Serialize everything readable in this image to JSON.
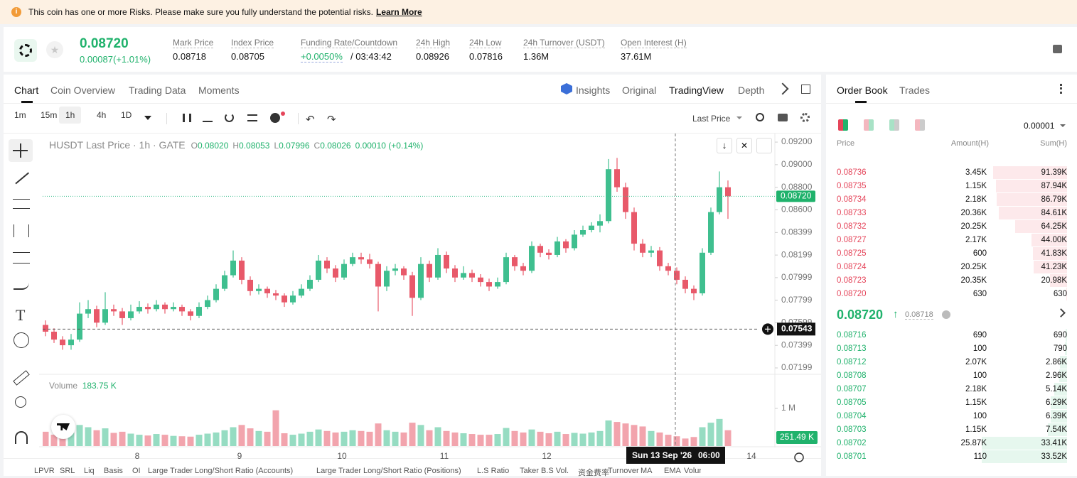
{
  "banner": {
    "text": "This coin has one or more Risks. Please make sure you fully understand the potential risks.",
    "link": "Learn More"
  },
  "ticker": {
    "price": "0.08720",
    "change": "0.00087(+1.01%)",
    "stats": [
      {
        "label": "Mark Price",
        "value": "0.08718"
      },
      {
        "label": "Index Price",
        "value": "0.08705"
      },
      {
        "label": "Funding Rate/Countdown",
        "value": "+0.0050%",
        "extra": "/ 03:43:42"
      },
      {
        "label": "24h High",
        "value": "0.08926"
      },
      {
        "label": "24h Low",
        "value": "0.07816"
      },
      {
        "label": "24h Turnover (USDT)",
        "value": "1.36M"
      },
      {
        "label": "Open Interest (H)",
        "value": "37.61M"
      }
    ]
  },
  "tabs": [
    "Chart",
    "Coin Overview",
    "Trading Data",
    "Moments"
  ],
  "views": [
    "Insights",
    "Original",
    "TradingView",
    "Depth"
  ],
  "intervals": [
    "1m",
    "15m",
    "1h",
    "4h",
    "1D"
  ],
  "price_type": "Last Price",
  "legend": {
    "title": "HUSDT Last Price · 1h · GATE",
    "items": [
      {
        "k": "O",
        "v": "0.08020"
      },
      {
        "k": "H",
        "v": "0.08053"
      },
      {
        "k": "L",
        "v": "0.07996"
      },
      {
        "k": "C",
        "v": "0.08026"
      }
    ],
    "change": "0.00010 (+0.14%)"
  },
  "chart": {
    "type": "candlestick",
    "up_color": "#3fbf8f",
    "down_color": "#e8596a",
    "ylim": [
      0.07155,
      0.09276
    ],
    "yticks": [
      {
        "value": 0.092,
        "label": "0.09200"
      },
      {
        "value": 0.09,
        "label": "0.09000"
      },
      {
        "value": 0.088,
        "label": "0.08800"
      },
      {
        "value": 0.086,
        "label": "0.08600"
      },
      {
        "value": 0.08399,
        "label": "0.08399"
      },
      {
        "value": 0.08199,
        "label": "0.08199"
      },
      {
        "value": 0.07999,
        "label": "0.07999"
      },
      {
        "value": 0.07799,
        "label": "0.07799"
      },
      {
        "value": 0.07599,
        "label": "0.07599"
      },
      {
        "value": 0.07399,
        "label": "0.07399"
      },
      {
        "value": 0.07199,
        "label": "0.07199"
      }
    ],
    "last_price": {
      "value": 0.0872,
      "label": "0.08720"
    },
    "crosshair_price": {
      "value": 0.07543,
      "label": "0.07543"
    },
    "crosshair_date": "Sun 13 Sep '26",
    "crosshair_time": "06:00",
    "x_labels": [
      "8",
      "9",
      "10",
      "11",
      "12",
      "14"
    ],
    "volume_label": "Volume",
    "volume_value": "183.75 K",
    "last_volume_label": "251.49 K",
    "vol_ylim": [
      0,
      1849000
    ],
    "vol_yticks": [
      {
        "value": 1000000,
        "label": "1 M"
      }
    ],
    "ohlc": [
      [
        0.0758,
        0.0762,
        0.0748,
        0.0752
      ],
      [
        0.0752,
        0.0755,
        0.0742,
        0.0745
      ],
      [
        0.0745,
        0.0748,
        0.0736,
        0.074
      ],
      [
        0.074,
        0.075,
        0.0736,
        0.0745
      ],
      [
        0.0745,
        0.0778,
        0.0743,
        0.0768
      ],
      [
        0.0768,
        0.078,
        0.0764,
        0.0772
      ],
      [
        0.0772,
        0.0775,
        0.0756,
        0.076
      ],
      [
        0.076,
        0.0787,
        0.0758,
        0.0772
      ],
      [
        0.0772,
        0.0776,
        0.0766,
        0.077
      ],
      [
        0.077,
        0.0773,
        0.0758,
        0.0764
      ],
      [
        0.0764,
        0.0776,
        0.0762,
        0.077
      ],
      [
        0.077,
        0.0779,
        0.0768,
        0.0774
      ],
      [
        0.0774,
        0.0777,
        0.0768,
        0.0772
      ],
      [
        0.0772,
        0.078,
        0.077,
        0.0776
      ],
      [
        0.0776,
        0.0778,
        0.0768,
        0.0772
      ],
      [
        0.0772,
        0.0778,
        0.077,
        0.0774
      ],
      [
        0.0774,
        0.0776,
        0.0766,
        0.077
      ],
      [
        0.077,
        0.0772,
        0.0762,
        0.0766
      ],
      [
        0.0766,
        0.0778,
        0.0764,
        0.0774
      ],
      [
        0.0774,
        0.0784,
        0.0772,
        0.078
      ],
      [
        0.078,
        0.0794,
        0.0778,
        0.079
      ],
      [
        0.079,
        0.0806,
        0.0788,
        0.0802
      ],
      [
        0.0802,
        0.0824,
        0.08,
        0.0815
      ],
      [
        0.0815,
        0.0818,
        0.0794,
        0.0798
      ],
      [
        0.0798,
        0.0801,
        0.0784,
        0.0788
      ],
      [
        0.0788,
        0.0794,
        0.0785,
        0.079
      ],
      [
        0.079,
        0.0792,
        0.0782,
        0.0786
      ],
      [
        0.0786,
        0.0789,
        0.078,
        0.0784
      ],
      [
        0.0784,
        0.0786,
        0.0774,
        0.0778
      ],
      [
        0.0778,
        0.0788,
        0.0776,
        0.0784
      ],
      [
        0.0784,
        0.0794,
        0.0782,
        0.079
      ],
      [
        0.079,
        0.0802,
        0.0788,
        0.0798
      ],
      [
        0.0798,
        0.082,
        0.0796,
        0.0815
      ],
      [
        0.0815,
        0.0818,
        0.0804,
        0.0808
      ],
      [
        0.0808,
        0.0811,
        0.0796,
        0.08
      ],
      [
        0.08,
        0.0816,
        0.0798,
        0.0812
      ],
      [
        0.0812,
        0.0822,
        0.081,
        0.0818
      ],
      [
        0.0818,
        0.0822,
        0.0812,
        0.0816
      ],
      [
        0.0816,
        0.0821,
        0.0808,
        0.0812
      ],
      [
        0.0812,
        0.0814,
        0.077,
        0.0792
      ],
      [
        0.0792,
        0.081,
        0.0788,
        0.0806
      ],
      [
        0.0806,
        0.0812,
        0.0802,
        0.0808
      ],
      [
        0.0808,
        0.081,
        0.0798,
        0.0802
      ],
      [
        0.0802,
        0.0805,
        0.0766,
        0.0782
      ],
      [
        0.0782,
        0.0818,
        0.078,
        0.0812
      ],
      [
        0.0812,
        0.0815,
        0.0796,
        0.08
      ],
      [
        0.08,
        0.0826,
        0.0798,
        0.082
      ],
      [
        0.082,
        0.0823,
        0.0804,
        0.0808
      ],
      [
        0.0808,
        0.0811,
        0.0796,
        0.08
      ],
      [
        0.08,
        0.081,
        0.0798,
        0.0804
      ],
      [
        0.0804,
        0.0807,
        0.0796,
        0.08
      ],
      [
        0.08,
        0.0803,
        0.0792,
        0.0796
      ],
      [
        0.0796,
        0.0799,
        0.0788,
        0.0792
      ],
      [
        0.0792,
        0.08,
        0.079,
        0.0796
      ],
      [
        0.0796,
        0.0822,
        0.0794,
        0.0818
      ],
      [
        0.0818,
        0.082,
        0.0806,
        0.081
      ],
      [
        0.081,
        0.0813,
        0.0802,
        0.0806
      ],
      [
        0.0806,
        0.0832,
        0.0804,
        0.0828
      ],
      [
        0.0828,
        0.083,
        0.0818,
        0.0822
      ],
      [
        0.0822,
        0.0825,
        0.0816,
        0.082
      ],
      [
        0.082,
        0.0836,
        0.0818,
        0.0832
      ],
      [
        0.0832,
        0.0834,
        0.0822,
        0.0826
      ],
      [
        0.0826,
        0.0842,
        0.0824,
        0.0838
      ],
      [
        0.0838,
        0.0846,
        0.0836,
        0.0842
      ],
      [
        0.0842,
        0.0849,
        0.084,
        0.0846
      ],
      [
        0.0846,
        0.0856,
        0.084,
        0.085
      ],
      [
        0.085,
        0.0905,
        0.0848,
        0.0896
      ],
      [
        0.0896,
        0.0906,
        0.0876,
        0.088
      ],
      [
        0.088,
        0.0884,
        0.0852,
        0.0858
      ],
      [
        0.0858,
        0.0862,
        0.0824,
        0.083
      ],
      [
        0.083,
        0.0834,
        0.0818,
        0.0822
      ],
      [
        0.0822,
        0.0828,
        0.0818,
        0.0824
      ],
      [
        0.0824,
        0.0827,
        0.0806,
        0.081
      ],
      [
        0.081,
        0.0813,
        0.0802,
        0.0806
      ],
      [
        0.0806,
        0.0809,
        0.0794,
        0.0798
      ],
      [
        0.0798,
        0.0801,
        0.0786,
        0.079
      ],
      [
        0.079,
        0.0793,
        0.078,
        0.0786
      ],
      [
        0.0786,
        0.0826,
        0.0784,
        0.0822
      ],
      [
        0.0822,
        0.0862,
        0.082,
        0.0858
      ],
      [
        0.0858,
        0.0894,
        0.0856,
        0.088
      ],
      [
        0.088,
        0.0886,
        0.0852,
        0.0872
      ]
    ],
    "volumes": [
      380000,
      300000,
      280000,
      350000,
      560000,
      500000,
      420000,
      470000,
      350000,
      380000,
      330000,
      300000,
      280000,
      320000,
      300000,
      270000,
      260000,
      250000,
      300000,
      330000,
      360000,
      420000,
      500000,
      560000,
      470000,
      400000,
      380000,
      950000,
      340000,
      300000,
      330000,
      380000,
      440000,
      400000,
      360000,
      380000,
      420000,
      400000,
      380000,
      600000,
      420000,
      380000,
      360000,
      620000,
      560000,
      420000,
      500000,
      400000,
      360000,
      340000,
      320000,
      300000,
      300000,
      320000,
      480000,
      400000,
      360000,
      440000,
      380000,
      340000,
      380000,
      320000,
      350000,
      330000,
      360000,
      400000,
      680000,
      640000,
      600000,
      560000,
      520000,
      400000,
      360000,
      300000,
      260000,
      200000,
      240000,
      500000,
      620000,
      720000,
      420000
    ]
  },
  "indicators": [
    "LPVR",
    "SRL",
    "Liq",
    "Basis",
    "OI",
    "Large Trader Long/Short Ratio (Accounts)",
    "Large Trader Long/Short Ratio (Positions)",
    "L.S Ratio",
    "Taker B.S Vol.",
    "资金费率",
    "Turnover",
    "MA",
    "EMA",
    "Volume"
  ],
  "order_book": {
    "tabs": [
      "Order Book",
      "Trades"
    ],
    "precision": "0.00001",
    "headers": [
      "Price",
      "Amount(H)",
      "Sum(H)"
    ],
    "asks": [
      {
        "price": "0.08736",
        "amount": "3.45K",
        "sum": {
          "value": 91390,
          "label": "91.39K"
        }
      },
      {
        "price": "0.08735",
        "amount": "1.15K",
        "sum": {
          "value": 87940,
          "label": "87.94K"
        }
      },
      {
        "price": "0.08734",
        "amount": "2.18K",
        "sum": {
          "value": 86790,
          "label": "86.79K"
        }
      },
      {
        "price": "0.08733",
        "amount": "20.36K",
        "sum": {
          "value": 84610,
          "label": "84.61K"
        }
      },
      {
        "price": "0.08732",
        "amount": "20.25K",
        "sum": {
          "value": 64250,
          "label": "64.25K"
        }
      },
      {
        "price": "0.08727",
        "amount": "2.17K",
        "sum": {
          "value": 44000,
          "label": "44.00K"
        }
      },
      {
        "price": "0.08725",
        "amount": "600",
        "sum": {
          "value": 41830,
          "label": "41.83K"
        }
      },
      {
        "price": "0.08724",
        "amount": "20.25K",
        "sum": {
          "value": 41230,
          "label": "41.23K"
        }
      },
      {
        "price": "0.08723",
        "amount": "20.35K",
        "sum": {
          "value": 20980,
          "label": "20.98K"
        }
      },
      {
        "price": "0.08720",
        "amount": "630",
        "sum": 630
      }
    ],
    "mid": {
      "price": "0.08720",
      "mark": "0.08718"
    },
    "bids": [
      {
        "price": "0.08716",
        "amount": "690",
        "sum": 690
      },
      {
        "price": "0.08713",
        "amount": "100",
        "sum": 790
      },
      {
        "price": "0.08712",
        "amount": "2.07K",
        "sum": {
          "value": 2860,
          "label": "2.86K"
        }
      },
      {
        "price": "0.08708",
        "amount": "100",
        "sum": {
          "value": 2960,
          "label": "2.96K"
        }
      },
      {
        "price": "0.08707",
        "amount": "2.18K",
        "sum": {
          "value": 5140,
          "label": "5.14K"
        }
      },
      {
        "price": "0.08705",
        "amount": "1.15K",
        "sum": {
          "value": 6290,
          "label": "6.29K"
        }
      },
      {
        "price": "0.08704",
        "amount": "100",
        "sum": {
          "value": 6390,
          "label": "6.39K"
        }
      },
      {
        "price": "0.08703",
        "amount": "1.15K",
        "sum": {
          "value": 7540,
          "label": "7.54K"
        }
      },
      {
        "price": "0.08702",
        "amount": "25.87K",
        "sum": {
          "value": 33410,
          "label": "33.41K"
        }
      },
      {
        "price": "0.08701",
        "amount": "110",
        "sum": {
          "value": 33520,
          "label": "33.52K"
        }
      }
    ]
  }
}
